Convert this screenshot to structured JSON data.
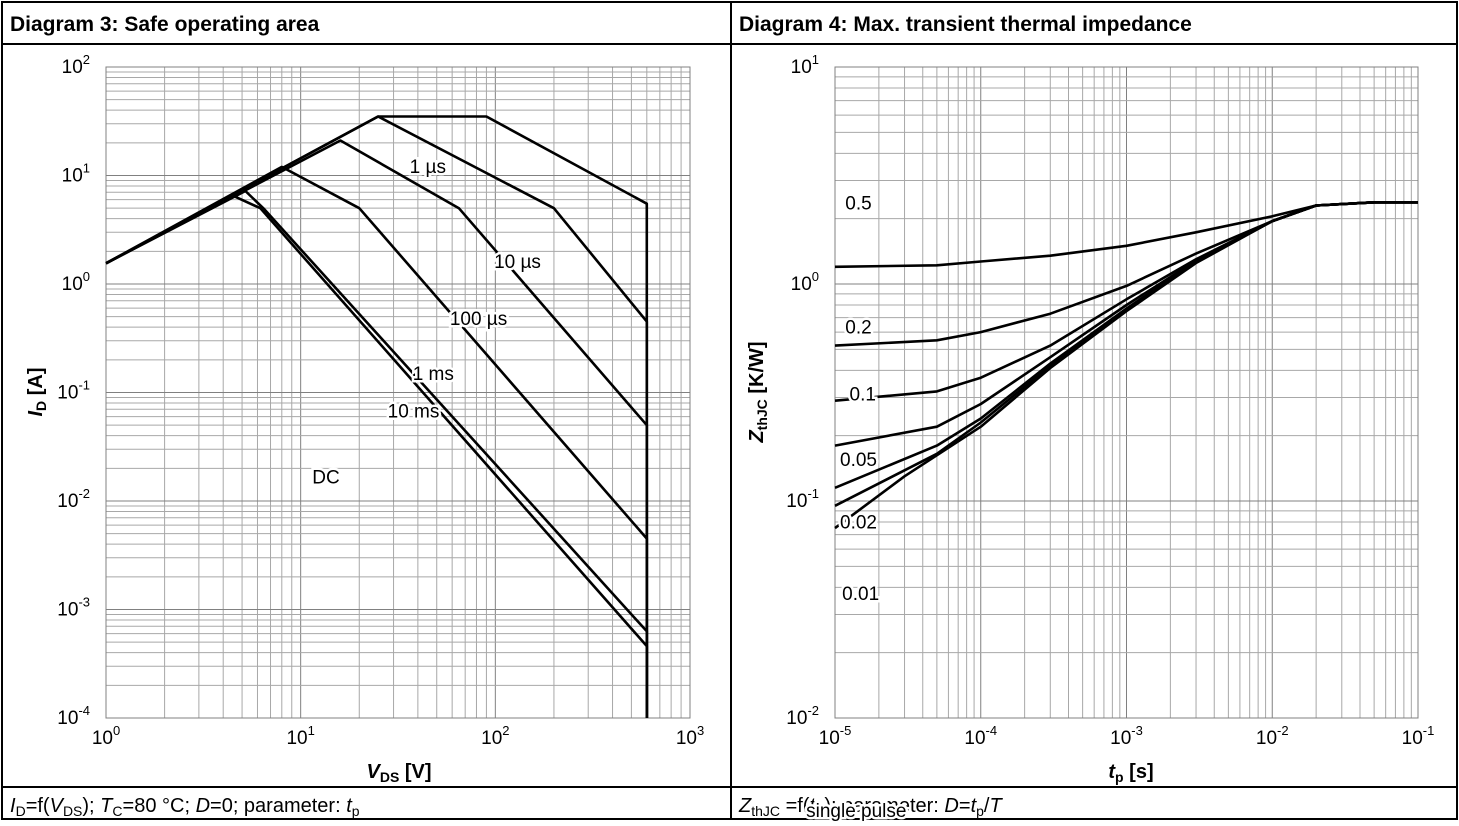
{
  "panels": [
    {
      "title": "Diagram 3: Safe operating area",
      "caption": "I_D=f(V_DS); T_C=80 °C; D=0; parameter: t_p"
    },
    {
      "title": "Diagram 4: Max. transient thermal impedance",
      "caption": "Z_thJC =f(t_P); parameter: D=t_p/T"
    }
  ],
  "chart_data": [
    {
      "type": "line",
      "title": "Diagram 3: Safe operating area",
      "xscale": "log",
      "yscale": "log",
      "xlim": [
        1,
        1000
      ],
      "ylim": [
        0.0001,
        100
      ],
      "xlabel": "VDS [V]",
      "ylabel": "ID [A]",
      "xticks": [
        {
          "base": "10",
          "exp": "0"
        },
        {
          "base": "10",
          "exp": "1"
        },
        {
          "base": "10",
          "exp": "2"
        },
        {
          "base": "10",
          "exp": "3"
        }
      ],
      "yticks": [
        {
          "base": "10",
          "exp": "2"
        },
        {
          "base": "10",
          "exp": "1"
        },
        {
          "base": "10",
          "exp": "0"
        },
        {
          "base": "10",
          "exp": "-1"
        },
        {
          "base": "10",
          "exp": "-2"
        },
        {
          "base": "10",
          "exp": "-3"
        },
        {
          "base": "10",
          "exp": "-4"
        }
      ],
      "grid": true,
      "series": [
        {
          "name": "1 µs",
          "label_at": [
            45,
            10.5
          ],
          "x": [
            1,
            25,
            90,
            600,
            600
          ],
          "y": [
            1.55,
            35,
            35,
            5.5,
            0.0001
          ]
        },
        {
          "name": "10 µs",
          "label_at": [
            130,
            1.4
          ],
          "x": [
            1,
            25,
            200,
            600,
            600
          ],
          "y": [
            1.55,
            35,
            5.0,
            0.45,
            0.0001
          ]
        },
        {
          "name": "100 µs",
          "label_at": [
            82,
            0.42
          ],
          "x": [
            1,
            16,
            65,
            600,
            600
          ],
          "y": [
            1.55,
            21,
            5.0,
            0.05,
            0.0001
          ]
        },
        {
          "name": "1 ms",
          "label_at": [
            48,
            0.13
          ],
          "x": [
            1,
            8,
            20,
            600,
            600
          ],
          "y": [
            1.55,
            12,
            5.0,
            0.0045,
            0.0001
          ]
        },
        {
          "name": "10 ms",
          "label_at": [
            38,
            0.059
          ],
          "x": [
            1,
            5.2,
            6.5,
            600,
            600
          ],
          "y": [
            1.55,
            7.2,
            4.9,
            0.00063,
            0.0001
          ]
        },
        {
          "name": "DC",
          "label_at": [
            13.5,
            0.0145
          ],
          "x": [
            1,
            4.5,
            6.2,
            600,
            600
          ],
          "y": [
            1.55,
            6.5,
            5.0,
            0.00046,
            0.0001
          ]
        }
      ]
    },
    {
      "type": "line",
      "title": "Diagram 4: Max. transient thermal impedance",
      "xscale": "log",
      "yscale": "log",
      "xlim": [
        1e-05,
        0.1
      ],
      "ylim": [
        0.01,
        10
      ],
      "xlabel": "tp [s]",
      "ylabel": "ZthJC [K/W]",
      "xticks": [
        {
          "base": "10",
          "exp": "-5"
        },
        {
          "base": "10",
          "exp": "-4"
        },
        {
          "base": "10",
          "exp": "-3"
        },
        {
          "base": "10",
          "exp": "-2"
        },
        {
          "base": "10",
          "exp": "-1"
        }
      ],
      "yticks": [
        {
          "base": "10",
          "exp": "1"
        },
        {
          "base": "10",
          "exp": "0"
        },
        {
          "base": "10",
          "exp": "-1"
        },
        {
          "base": "10",
          "exp": "-2"
        }
      ],
      "grid": true,
      "series": [
        {
          "name": "0.5",
          "label_at": [
            1.45e-05,
            2.2
          ],
          "x": [
            1e-05,
            5e-05,
            0.0001,
            0.0003,
            0.001,
            0.003,
            0.01,
            0.02,
            0.05,
            0.1
          ],
          "y": [
            1.2,
            1.22,
            1.27,
            1.35,
            1.5,
            1.73,
            2.05,
            2.3,
            2.38,
            2.38
          ]
        },
        {
          "name": "0.2",
          "label_at": [
            1.45e-05,
            0.59
          ],
          "x": [
            1e-05,
            5e-05,
            0.0001,
            0.0003,
            0.001,
            0.003,
            0.01,
            0.02,
            0.05,
            0.1
          ],
          "y": [
            0.52,
            0.55,
            0.6,
            0.73,
            0.98,
            1.38,
            1.95,
            2.3,
            2.38,
            2.38
          ]
        },
        {
          "name": "0.1",
          "label_at": [
            1.55e-05,
            0.29
          ],
          "x": [
            1e-05,
            5e-05,
            0.0001,
            0.0003,
            0.001,
            0.003,
            0.01,
            0.02,
            0.05,
            0.1
          ],
          "y": [
            0.29,
            0.32,
            0.37,
            0.52,
            0.85,
            1.3,
            1.95,
            2.3,
            2.38,
            2.38
          ]
        },
        {
          "name": "0.05",
          "label_at": [
            1.45e-05,
            0.145
          ],
          "x": [
            1e-05,
            5e-05,
            0.0001,
            0.0003,
            0.001,
            0.003,
            0.01,
            0.02,
            0.05,
            0.1
          ],
          "y": [
            0.18,
            0.22,
            0.28,
            0.46,
            0.8,
            1.28,
            1.95,
            2.3,
            2.38,
            2.38
          ]
        },
        {
          "name": "0.02",
          "label_at": [
            1.45e-05,
            0.0745
          ],
          "x": [
            1e-05,
            5e-05,
            0.0001,
            0.0003,
            0.001,
            0.003,
            0.01,
            0.02,
            0.05,
            0.1
          ],
          "y": [
            0.115,
            0.18,
            0.24,
            0.43,
            0.77,
            1.27,
            1.95,
            2.3,
            2.38,
            2.38
          ]
        },
        {
          "name": "0.01",
          "label_at": [
            1.5e-05,
            0.035
          ],
          "x": [
            1e-05,
            5e-05,
            0.0001,
            0.0003,
            0.001,
            0.003,
            0.01,
            0.02,
            0.05,
            0.1
          ],
          "y": [
            0.095,
            0.165,
            0.23,
            0.42,
            0.76,
            1.26,
            1.95,
            2.3,
            2.38,
            2.38
          ]
        },
        {
          "name": "single pulse",
          "label_at": [
            1.4e-05,
            0.0035
          ],
          "x": [
            1e-05,
            3e-05,
            0.0001,
            0.0003,
            0.001,
            0.003,
            0.01,
            0.02,
            0.05,
            0.1
          ],
          "y": [
            0.075,
            0.13,
            0.22,
            0.41,
            0.75,
            1.25,
            1.95,
            2.3,
            2.38,
            2.38
          ]
        }
      ]
    }
  ]
}
